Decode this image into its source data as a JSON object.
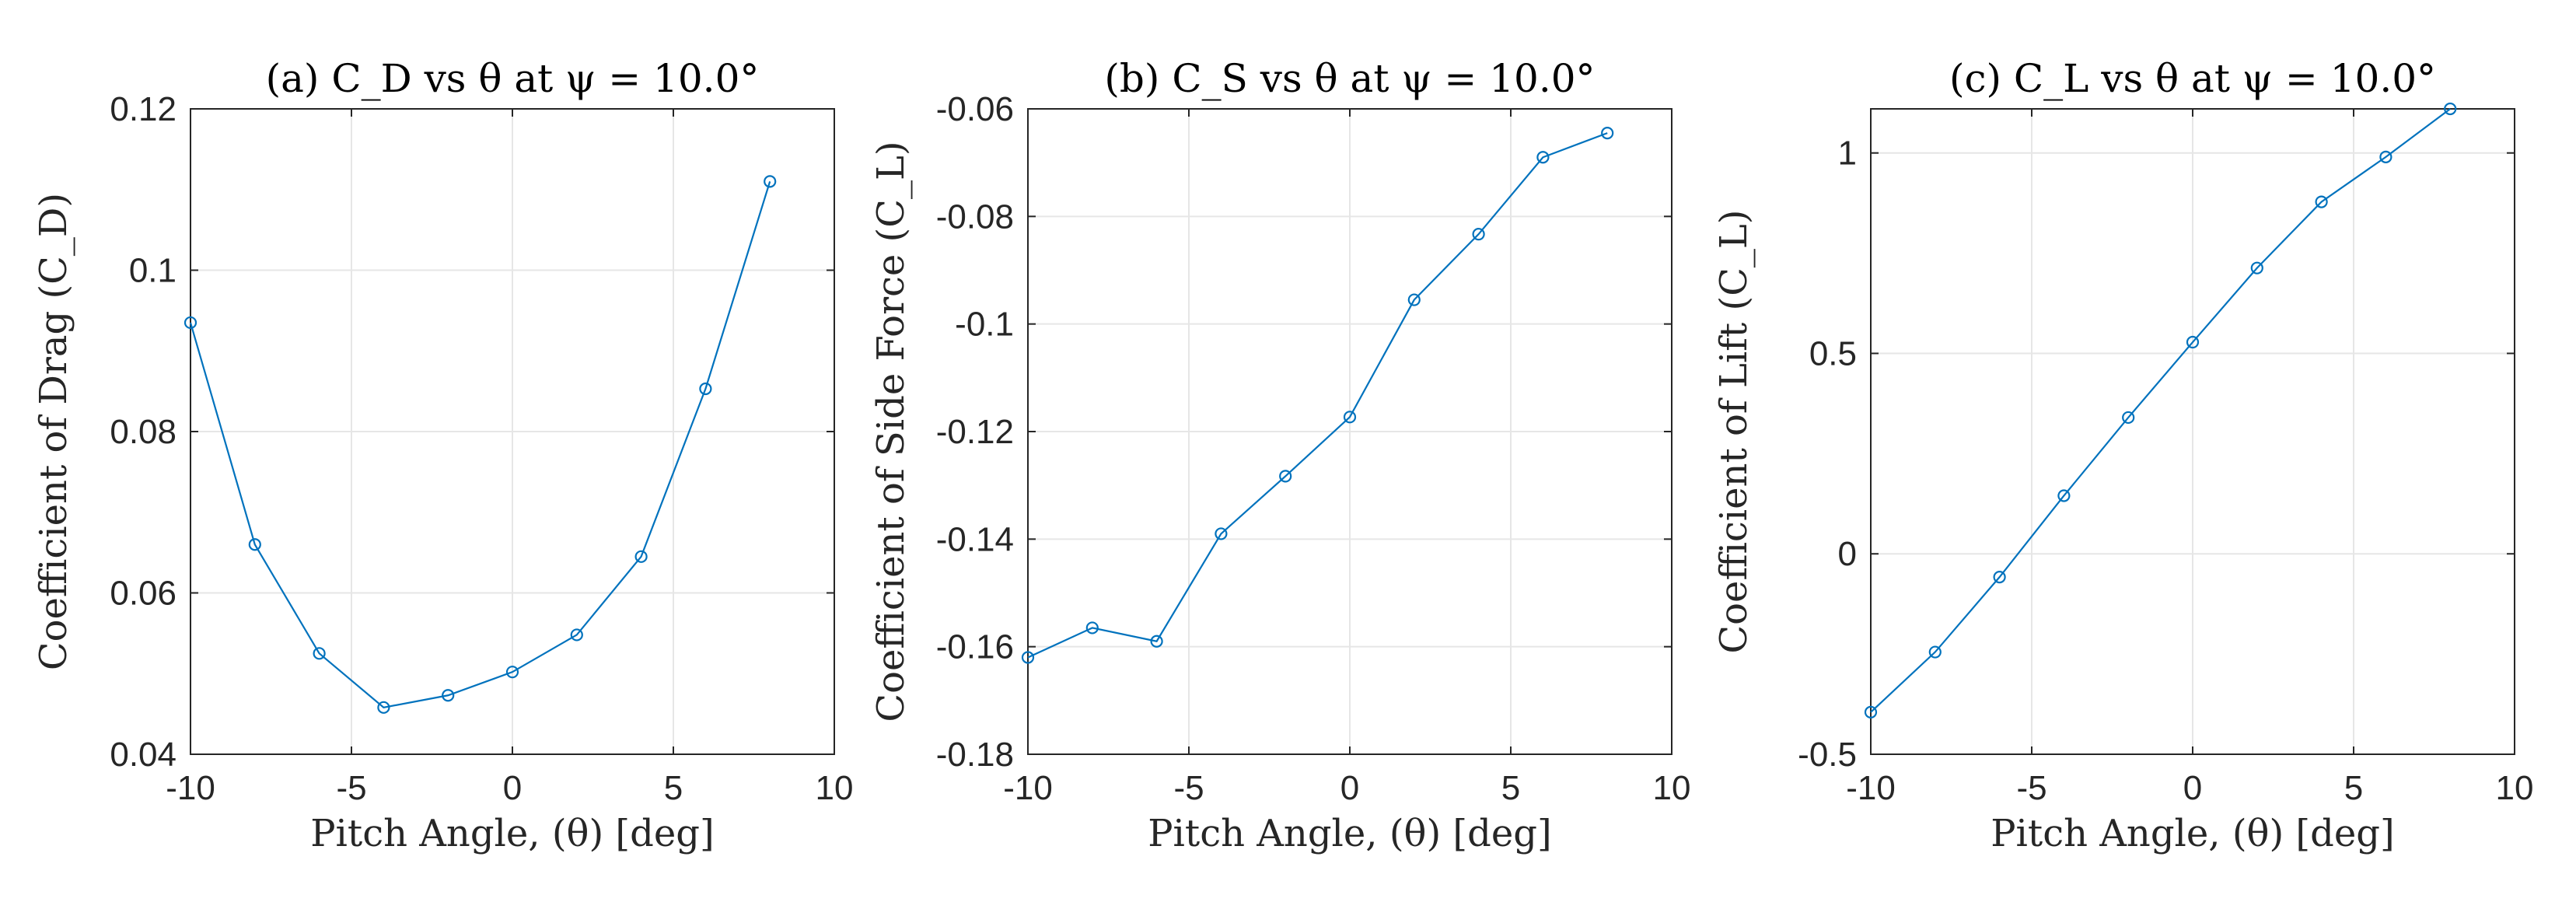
{
  "colors": {
    "series": "#0072BD",
    "grid": "#e6e6e6",
    "axis": "#262626"
  },
  "chart_data": [
    {
      "type": "line",
      "title": "(a) C_D vs θ at ψ = 10.0°",
      "xlabel": "Pitch Angle, (θ) [deg]",
      "ylabel": "Coefficient of Drag (C_D)",
      "xlim": [
        -10,
        10
      ],
      "ylim": [
        0.04,
        0.12
      ],
      "xticks": [
        -10,
        -5,
        0,
        5,
        10
      ],
      "yticks": [
        0.04,
        0.06,
        0.08,
        0.1,
        0.12
      ],
      "xtick_labels": [
        "-10",
        "-5",
        "0",
        "5",
        "10"
      ],
      "ytick_labels": [
        "0.04",
        "0.06",
        "0.08",
        "0.1",
        "0.12"
      ],
      "grid": true,
      "x": [
        -10,
        -8,
        -6,
        -4,
        -2,
        0,
        2,
        4,
        6,
        8
      ],
      "y": [
        0.0935,
        0.066,
        0.0525,
        0.0458,
        0.0473,
        0.0502,
        0.0548,
        0.0645,
        0.0853,
        0.111
      ]
    },
    {
      "type": "line",
      "title": "(b) C_S vs θ at ψ = 10.0°",
      "xlabel": "Pitch Angle, (θ) [deg]",
      "ylabel": "Coefficient of Side Force (C_L)",
      "xlim": [
        -10,
        10
      ],
      "ylim": [
        -0.18,
        -0.06
      ],
      "xticks": [
        -10,
        -5,
        0,
        5,
        10
      ],
      "yticks": [
        -0.18,
        -0.16,
        -0.14,
        -0.12,
        -0.1,
        -0.08,
        -0.06
      ],
      "xtick_labels": [
        "-10",
        "-5",
        "0",
        "5",
        "10"
      ],
      "ytick_labels": [
        "-0.18",
        "-0.16",
        "-0.14",
        "-0.12",
        "-0.1",
        "-0.08",
        "-0.06"
      ],
      "grid": true,
      "x": [
        -10,
        -8,
        -6,
        -4,
        -2,
        0,
        2,
        4,
        6,
        8
      ],
      "y": [
        -0.162,
        -0.1565,
        -0.159,
        -0.139,
        -0.1283,
        -0.1173,
        -0.0955,
        -0.0833,
        -0.069,
        -0.0645
      ]
    },
    {
      "type": "line",
      "title": "(c) C_L vs θ at ψ = 10.0°",
      "xlabel": "Pitch Angle, (θ) [deg]",
      "ylabel": "Coefficient of Lift (C_L)",
      "xlim": [
        -10,
        10
      ],
      "ylim": [
        -0.5,
        1.11
      ],
      "xticks": [
        -10,
        -5,
        0,
        5,
        10
      ],
      "yticks": [
        -0.5,
        0,
        0.5,
        1
      ],
      "xtick_labels": [
        "-10",
        "-5",
        "0",
        "5",
        "10"
      ],
      "ytick_labels": [
        "-0.5",
        "0",
        "0.5",
        "1"
      ],
      "grid": true,
      "x": [
        -10,
        -8,
        -6,
        -4,
        -2,
        0,
        2,
        4,
        6,
        8
      ],
      "y": [
        -0.395,
        -0.245,
        -0.058,
        0.145,
        0.34,
        0.528,
        0.713,
        0.878,
        0.99,
        1.11
      ]
    }
  ]
}
